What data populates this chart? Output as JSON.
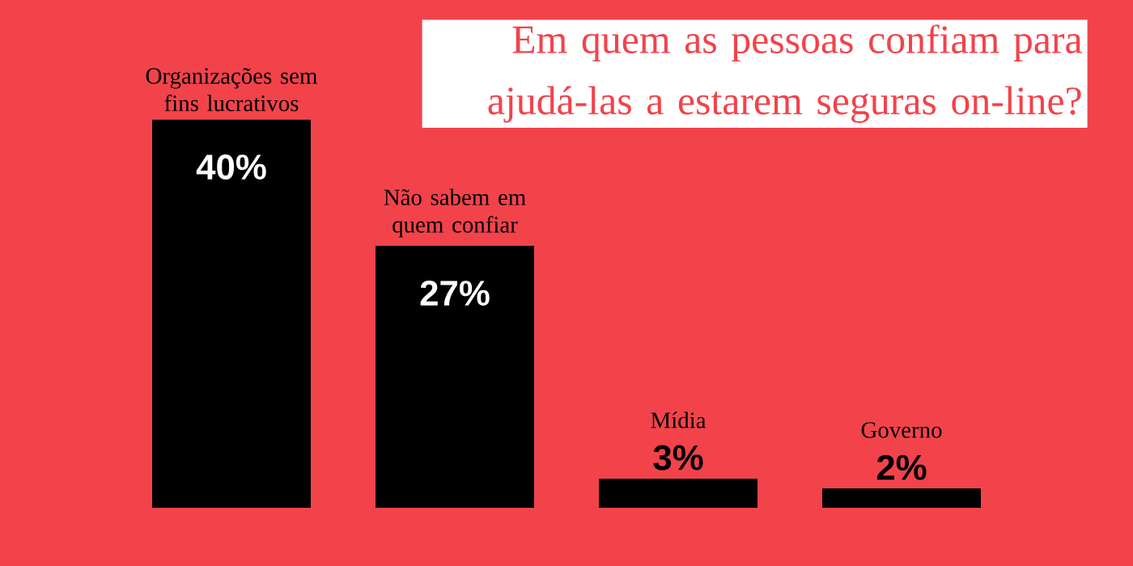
{
  "chart_data": {
    "type": "bar",
    "title": "Em quem as pessoas confiam para ajudá-las a estarem seguras on-line?",
    "categories": [
      "Organizações sem fins lucrativos",
      "Não sabem em quem confiar",
      "Mídia",
      "Governo"
    ],
    "values": [
      40,
      27,
      3,
      2
    ],
    "color": "#000000",
    "data_labels": true,
    "value_labels": [
      "40%",
      "27%",
      "3%",
      "2%"
    ]
  }
}
